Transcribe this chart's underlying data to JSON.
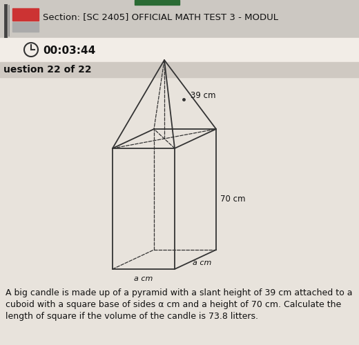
{
  "bg_top": "#ddd8d2",
  "bg_main": "#e8e3dc",
  "header_text": "Section: [SC 2405] OFFICIAL MATH TEST 3 - MODUL",
  "timer_text": "00:03:44",
  "question_label": "uestion 22 of 22",
  "question_text_line1": "A big candle is made up of a pyramid with a slant height of 39 cm attached to a",
  "question_text_line2": "cuboid with a square base of sides α cm and a height of 70 cm. Calculate the",
  "question_text_line3": "length of square if the volume of the candle is 73.8 litters.",
  "label_39": "39 cm",
  "label_70": "70 cm",
  "label_a_front": "a cm",
  "label_a_right": "a cm",
  "line_color": "#333333",
  "fig_width": 5.2,
  "fig_height": 5.0,
  "dpi": 100
}
